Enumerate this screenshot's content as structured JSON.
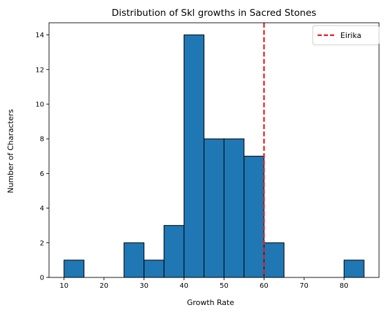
{
  "chart_data": {
    "type": "bar",
    "title": "Distribution of Skl growths in Sacred Stones",
    "xlabel": "Growth Rate",
    "ylabel": "Number of Characters",
    "bin_edges": [
      10,
      15,
      20,
      25,
      30,
      35,
      40,
      45,
      50,
      55,
      60,
      65,
      70,
      75,
      80,
      85
    ],
    "values": [
      1,
      0,
      0,
      2,
      1,
      3,
      14,
      8,
      8,
      7,
      2,
      0,
      0,
      0,
      1
    ],
    "xlim": [
      6.25,
      88.75
    ],
    "ylim": [
      0,
      14.7
    ],
    "xticks": [
      10,
      20,
      30,
      40,
      50,
      60,
      70,
      80
    ],
    "yticks": [
      0,
      2,
      4,
      6,
      8,
      10,
      12,
      14
    ],
    "bar_color": "#1f77b4",
    "bar_edge_color": "#000000",
    "vline": {
      "x": 60,
      "label": "Eirika",
      "color": "#e31a1c",
      "style": "dashed"
    },
    "legend": {
      "position": "upper-right",
      "entries": [
        "Eirika"
      ]
    },
    "grid": false
  }
}
